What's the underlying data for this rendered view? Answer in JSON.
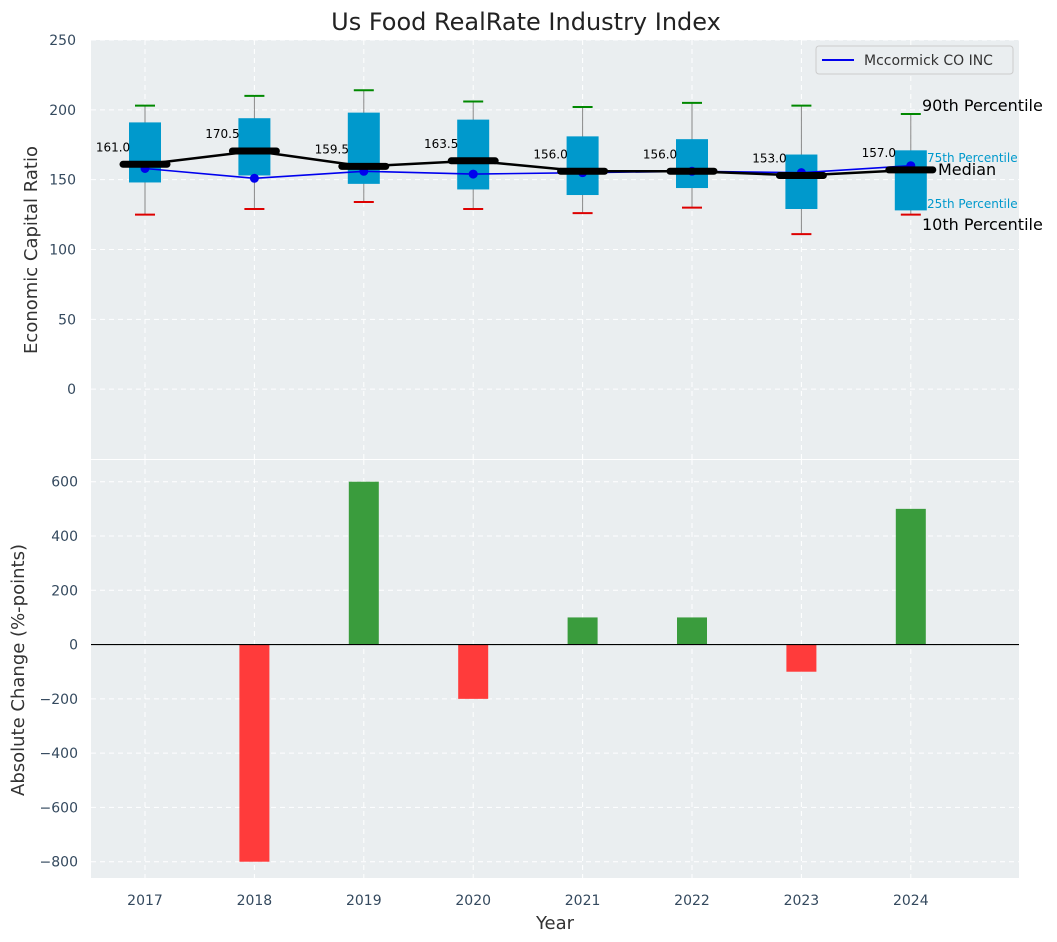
{
  "chart_data": [
    {
      "type": "box",
      "title": "Us Food RealRate Industry Index",
      "ylabel": "Economic Capital Ratio",
      "ylim": [
        -50,
        250
      ],
      "yticks": [
        0,
        50,
        100,
        150,
        200,
        250
      ],
      "categories": [
        "2017",
        "2018",
        "2019",
        "2020",
        "2021",
        "2022",
        "2023",
        "2024"
      ],
      "p10": [
        125,
        129,
        134,
        129,
        126,
        130,
        111,
        125
      ],
      "p25": [
        148,
        153,
        147,
        143,
        139,
        144,
        129,
        128
      ],
      "median": [
        161.0,
        170.5,
        159.5,
        163.5,
        156.0,
        156.0,
        153.0,
        157.0
      ],
      "median_labels": [
        "161.0",
        "170.5",
        "159.5",
        "163.5",
        "156.0",
        "156.0",
        "153.0",
        "157.0"
      ],
      "p75": [
        191,
        194,
        198,
        193,
        181,
        179,
        168,
        171
      ],
      "p90": [
        203,
        210,
        214,
        206,
        202,
        205,
        203,
        197
      ],
      "company_series": {
        "name": "Mccormick CO INC",
        "values": [
          158,
          151,
          156,
          154,
          155,
          156,
          155,
          160
        ]
      },
      "legend": [
        "Mccormick CO INC"
      ],
      "legend_position": "top-right",
      "percentile_labels": {
        "p90": "90th Percentile",
        "p75": "75th Percentile",
        "median": "Median",
        "p25": "25th Percentile",
        "p10": "10th Percentile"
      }
    },
    {
      "type": "bar",
      "categories": [
        "2017",
        "2018",
        "2019",
        "2020",
        "2021",
        "2022",
        "2023",
        "2024"
      ],
      "values": [
        0,
        -800,
        600,
        -200,
        100,
        100,
        -100,
        500
      ],
      "xlabel": "Year",
      "ylabel": "Absolute Change (%-points)",
      "ylim": [
        -860,
        680
      ],
      "yticks": [
        -800,
        -600,
        -400,
        -200,
        0,
        200,
        400,
        600
      ],
      "ytick_labels": [
        "−800",
        "−600",
        "−400",
        "−200",
        "0",
        "200",
        "400",
        "600"
      ]
    }
  ],
  "colors": {
    "panel_bg": "#eaeef0",
    "box_fill": "#0099cc",
    "whisker_low": "#dd0000",
    "whisker_high": "#008800",
    "median_line": "#000000",
    "company_line": "#0000ee",
    "bar_positive": "#3a9c3d",
    "bar_negative": "#ff3b3b",
    "percentile_small_text": "#0099cc"
  }
}
